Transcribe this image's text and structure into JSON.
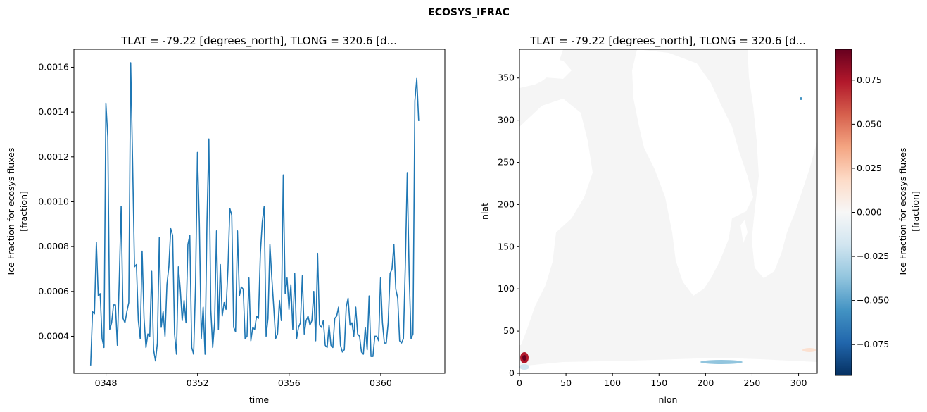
{
  "figure": {
    "suptitle": "ECOSYS_IFRAC"
  },
  "chart_data": [
    {
      "type": "line",
      "title": "TLAT = -79.22 [degrees_north], TLONG = 320.6 [d...",
      "xlabel": "time",
      "ylabel_lines": [
        "Ice Fraction for ecosys fluxes",
        "[fraction]"
      ],
      "xlim": [
        346.6,
        362.8
      ],
      "ylim": [
        0.000235,
        0.00168
      ],
      "x_ticks": [
        348,
        352,
        356,
        360
      ],
      "x_tick_labels": [
        "0348",
        "0352",
        "0356",
        "0360"
      ],
      "y_ticks": [
        0.0004,
        0.0006,
        0.0008,
        0.001,
        0.0012,
        0.0014,
        0.0016
      ],
      "y_tick_labels": [
        "0.0004",
        "0.0006",
        "0.0008",
        "0.0010",
        "0.0012",
        "0.0014",
        "0.0016"
      ],
      "grid": false,
      "color": "#1f77b4",
      "x_start": 347.33,
      "x_step": 0.0833,
      "values": [
        0.00027,
        0.00051,
        0.0005,
        0.00082,
        0.00058,
        0.00059,
        0.00039,
        0.00035,
        0.00144,
        0.00129,
        0.00043,
        0.00046,
        0.00054,
        0.00054,
        0.00036,
        0.00065,
        0.00098,
        0.00048,
        0.00046,
        0.00051,
        0.00055,
        0.00162,
        0.00118,
        0.00071,
        0.00072,
        0.00047,
        0.00039,
        0.00078,
        0.00048,
        0.00035,
        0.00041,
        0.0004,
        0.00069,
        0.00034,
        0.00029,
        0.00037,
        0.00084,
        0.00044,
        0.00051,
        0.0004,
        0.00063,
        0.00071,
        0.00088,
        0.00085,
        0.00041,
        0.00032,
        0.00071,
        0.00061,
        0.00047,
        0.00056,
        0.00046,
        0.00081,
        0.00085,
        0.00035,
        0.00032,
        0.00063,
        0.00122,
        0.00091,
        0.00039,
        0.00053,
        0.00032,
        0.00091,
        0.00128,
        0.00052,
        0.00035,
        0.00046,
        0.00087,
        0.00043,
        0.00072,
        0.00049,
        0.00055,
        0.00052,
        0.0007,
        0.00097,
        0.00094,
        0.00044,
        0.00042,
        0.00087,
        0.00058,
        0.00062,
        0.00061,
        0.00039,
        0.0004,
        0.00066,
        0.00038,
        0.00044,
        0.00043,
        0.00049,
        0.00048,
        0.00077,
        0.00091,
        0.00098,
        0.0004,
        0.00048,
        0.00081,
        0.00066,
        0.00053,
        0.00039,
        0.00041,
        0.00056,
        0.00047,
        0.00112,
        0.00059,
        0.00066,
        0.00052,
        0.00063,
        0.00043,
        0.00068,
        0.00039,
        0.00044,
        0.00046,
        0.00067,
        0.00041,
        0.00047,
        0.00049,
        0.00045,
        0.00047,
        0.0006,
        0.00038,
        0.00077,
        0.00045,
        0.00044,
        0.00047,
        0.00036,
        0.00035,
        0.00045,
        0.00036,
        0.00035,
        0.00048,
        0.00049,
        0.00053,
        0.00036,
        0.00033,
        0.00034,
        0.00053,
        0.00057,
        0.00045,
        0.00046,
        0.0004,
        0.00053,
        0.00041,
        0.0004,
        0.00033,
        0.00032,
        0.00044,
        0.00034,
        0.00058,
        0.00031,
        0.00031,
        0.0004,
        0.0004,
        0.00038,
        0.00066,
        0.00046,
        0.00037,
        0.00037,
        0.00046,
        0.00068,
        0.0007,
        0.00081,
        0.00061,
        0.00057,
        0.00038,
        0.00037,
        0.00039,
        0.00072,
        0.00113,
        0.00068,
        0.00039,
        0.00041,
        0.00145,
        0.00155,
        0.00136
      ]
    },
    {
      "type": "heatmap",
      "title": "TLAT = -79.22 [degrees_north], TLONG = 320.6 [d...",
      "xlabel": "nlon",
      "ylabel": "nlat",
      "xlim": [
        0,
        320
      ],
      "ylim": [
        0,
        384
      ],
      "x_ticks": [
        0,
        50,
        100,
        150,
        200,
        250,
        300
      ],
      "x_tick_labels": [
        "0",
        "50",
        "100",
        "150",
        "200",
        "250",
        "300"
      ],
      "y_ticks": [
        0,
        50,
        100,
        150,
        200,
        250,
        300,
        350
      ],
      "y_tick_labels": [
        "0",
        "50",
        "100",
        "150",
        "200",
        "250",
        "300",
        "350"
      ],
      "colormap": "RdBu_r",
      "ocean_color": "#f5f5f5",
      "land_color": "#ffffff",
      "colorbar": {
        "label_lines": [
          "Ice Fraction for ecosys fluxes",
          "[fraction]"
        ],
        "vmin": -0.0925,
        "vmax": 0.0925,
        "ticks": [
          -0.075,
          -0.05,
          -0.025,
          0.0,
          0.025,
          0.05,
          0.075
        ],
        "tick_labels": [
          "−0.075",
          "−0.050",
          "−0.025",
          "0.000",
          "0.025",
          "0.050",
          "0.075"
        ]
      },
      "features": [
        {
          "label": "red anomaly near origin",
          "lon": 6,
          "lat": 18,
          "value": 0.08
        },
        {
          "label": "light blue band",
          "lon": 215,
          "lat": 14,
          "value": -0.04
        },
        {
          "label": "faint blue patch",
          "lon": 8,
          "lat": 8,
          "value": -0.02
        },
        {
          "label": "faint red patch",
          "lon": 312,
          "lat": 26,
          "value": 0.02
        }
      ]
    }
  ]
}
